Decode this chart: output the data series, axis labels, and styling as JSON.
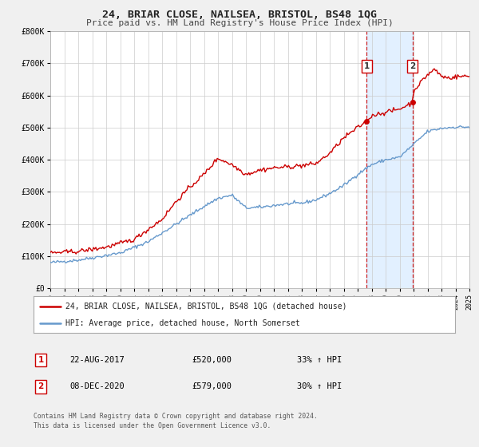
{
  "title": "24, BRIAR CLOSE, NAILSEA, BRISTOL, BS48 1QG",
  "subtitle": "Price paid vs. HM Land Registry's House Price Index (HPI)",
  "red_label": "24, BRIAR CLOSE, NAILSEA, BRISTOL, BS48 1QG (detached house)",
  "blue_label": "HPI: Average price, detached house, North Somerset",
  "marker1_date": 2017.64,
  "marker1_value": 520000,
  "marker1_text": "22-AUG-2017",
  "marker1_price": "£520,000",
  "marker1_pct": "33% ↑ HPI",
  "marker2_date": 2020.93,
  "marker2_value": 579000,
  "marker2_text": "08-DEC-2020",
  "marker2_price": "£579,000",
  "marker2_pct": "30% ↑ HPI",
  "footer1": "Contains HM Land Registry data © Crown copyright and database right 2024.",
  "footer2": "This data is licensed under the Open Government Licence v3.0.",
  "background_color": "#f0f0f0",
  "plot_bg_color": "#ffffff",
  "red_color": "#cc0000",
  "blue_color": "#6699cc",
  "shade_color": "#ddeeff",
  "xmin": 1995,
  "xmax": 2025,
  "ymin": 0,
  "ymax": 800000
}
